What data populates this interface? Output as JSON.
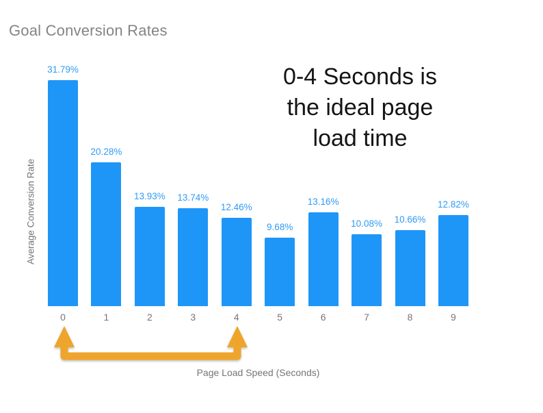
{
  "title": "Goal Conversion Rates",
  "annotation": {
    "lines": [
      "0-4 Seconds is",
      "the ideal page",
      "load time"
    ]
  },
  "chart_data": {
    "type": "bar",
    "title": "Goal Conversion Rates",
    "categories": [
      "0",
      "1",
      "2",
      "3",
      "4",
      "5",
      "6",
      "7",
      "8",
      "9"
    ],
    "values": [
      31.79,
      20.28,
      13.93,
      13.74,
      12.46,
      9.68,
      13.16,
      10.08,
      10.66,
      12.82
    ],
    "value_labels": [
      "31.79%",
      "20.28%",
      "13.93%",
      "13.74%",
      "12.46%",
      "9.68%",
      "13.16%",
      "10.08%",
      "10.66%",
      "12.82%"
    ],
    "xlabel": "Page Load Speed (Seconds)",
    "ylabel": "Average Conversion Rate",
    "ylim": [
      0,
      32
    ],
    "grid": false,
    "legend": "none",
    "annotation": "0-4 Seconds is the ideal page load time",
    "highlight_range": {
      "from_category": "0",
      "to_category": "4"
    }
  },
  "colors": {
    "bar": "#1E96F8",
    "value_label": "#2E9BF6",
    "arrow": "#EFA42B",
    "chart_title": "#848484",
    "axis_text": "#757575",
    "annotation_text": "#141414",
    "background": "#FFFFFF"
  }
}
